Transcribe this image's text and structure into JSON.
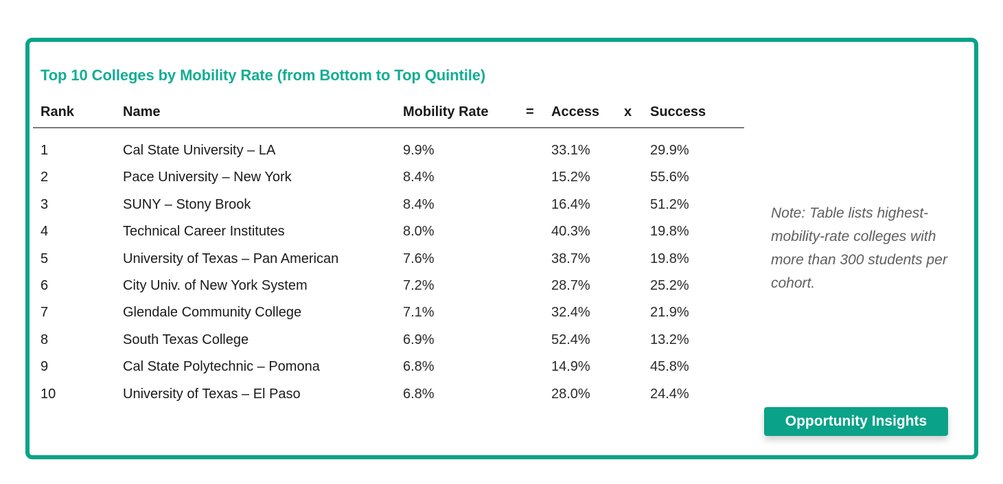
{
  "title": "Top 10 Colleges by Mobility Rate (from Bottom to Top Quintile)",
  "headers": {
    "rank": "Rank",
    "name": "Name",
    "mobility": "Mobility Rate",
    "eq": "=",
    "access": "Access",
    "times": "x",
    "success": "Success"
  },
  "rows": [
    {
      "rank": "1",
      "name": "Cal State University – LA",
      "mobility": "9.9%",
      "access": "33.1%",
      "success": "29.9%"
    },
    {
      "rank": "2",
      "name": "Pace University – New York",
      "mobility": "8.4%",
      "access": "15.2%",
      "success": "55.6%"
    },
    {
      "rank": "3",
      "name": "SUNY – Stony Brook",
      "mobility": "8.4%",
      "access": "16.4%",
      "success": "51.2%"
    },
    {
      "rank": "4",
      "name": "Technical Career Institutes",
      "mobility": "8.0%",
      "access": "40.3%",
      "success": "19.8%"
    },
    {
      "rank": "5",
      "name": "University of Texas – Pan American",
      "mobility": "7.6%",
      "access": "38.7%",
      "success": "19.8%"
    },
    {
      "rank": "6",
      "name": "City Univ. of New York System",
      "mobility": "7.2%",
      "access": "28.7%",
      "success": "25.2%"
    },
    {
      "rank": "7",
      "name": "Glendale Community College",
      "mobility": "7.1%",
      "access": "32.4%",
      "success": "21.9%"
    },
    {
      "rank": "8",
      "name": "South Texas College",
      "mobility": "6.9%",
      "access": "52.4%",
      "success": "13.2%"
    },
    {
      "rank": "9",
      "name": "Cal State Polytechnic – Pomona",
      "mobility": "6.8%",
      "access": "14.9%",
      "success": "45.8%"
    },
    {
      "rank": "10",
      "name": "University of Texas – El Paso",
      "mobility": "6.8%",
      "access": "28.0%",
      "success": "24.4%"
    }
  ],
  "note": "Note: Table lists highest-mobility-rate colleges with more than 300 students per cohort.",
  "brand": "Opportunity Insights",
  "colors": {
    "accent": "#0aa288",
    "title": "#12ad93",
    "note": "#5e5e5e"
  },
  "chart_data": {
    "type": "table",
    "title": "Top 10 Colleges by Mobility Rate (from Bottom to Top Quintile)",
    "columns": [
      "Rank",
      "Name",
      "Mobility Rate",
      "Access",
      "Success"
    ],
    "rows": [
      [
        1,
        "Cal State University – LA",
        "9.9%",
        "33.1%",
        "29.9%"
      ],
      [
        2,
        "Pace University – New York",
        "8.4%",
        "15.2%",
        "55.6%"
      ],
      [
        3,
        "SUNY – Stony Brook",
        "8.4%",
        "16.4%",
        "51.2%"
      ],
      [
        4,
        "Technical Career Institutes",
        "8.0%",
        "40.3%",
        "19.8%"
      ],
      [
        5,
        "University of Texas – Pan American",
        "7.6%",
        "38.7%",
        "19.8%"
      ],
      [
        6,
        "City Univ. of New York System",
        "7.2%",
        "28.7%",
        "25.2%"
      ],
      [
        7,
        "Glendale Community College",
        "7.1%",
        "32.4%",
        "21.9%"
      ],
      [
        8,
        "South Texas College",
        "6.9%",
        "52.4%",
        "13.2%"
      ],
      [
        9,
        "Cal State Polytechnic – Pomona",
        "6.8%",
        "14.9%",
        "45.8%"
      ],
      [
        10,
        "University of Texas – El Paso",
        "6.8%",
        "28.0%",
        "24.4%"
      ]
    ]
  }
}
